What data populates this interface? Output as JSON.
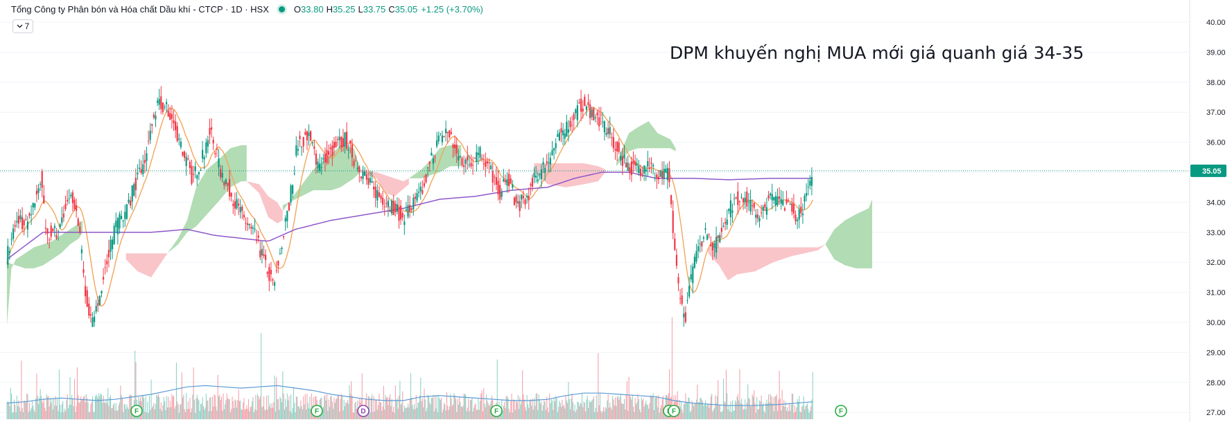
{
  "header": {
    "symbol_title": "Tổng Công ty Phân bón và Hóa chất Dầu khí - CTCP · 1D · HSX",
    "open_key": "O",
    "open": "33.80",
    "high_key": "H",
    "high": "35.25",
    "low_key": "L",
    "low": "33.75",
    "close_key": "C",
    "close": "35.05",
    "change": "+1.25 (+3.70%)",
    "collapse_label": "7",
    "status_color": "#089981"
  },
  "annotation": "DPM khuyến nghị MUA mới giá quanh giá 34-35",
  "events": [
    {
      "label": "F",
      "color": "#22ab3c"
    },
    {
      "label": "F",
      "color": "#22ab3c"
    },
    {
      "label": "D",
      "color": "#8e44ad"
    },
    {
      "label": "F",
      "color": "#22ab3c"
    },
    {
      "label": "F",
      "color": "#22ab3c"
    },
    {
      "label": "F",
      "color": "#22ab3c"
    },
    {
      "label": "F",
      "color": "#22ab3c"
    }
  ],
  "chart_data": {
    "type": "candlestick",
    "y_ticks": [
      "40.00",
      "39.00",
      "38.00",
      "37.00",
      "36.00",
      "35.00",
      "34.00",
      "33.00",
      "32.00",
      "31.00",
      "30.00",
      "29.00",
      "28.00",
      "27.00"
    ],
    "ylim": [
      26.9,
      40.4
    ],
    "last_price_label": "35.05",
    "last_price": 35.05,
    "colors": {
      "up": "#089981",
      "down": "#f23645",
      "up_vol": "#8fd3c7",
      "down_vol": "#f5a3ab",
      "ma_short": "#f2a65a",
      "ma_long": "#8e57c9",
      "vol_ma": "#5b9bd5",
      "cloud_bull": "#a5d6a7",
      "cloud_bear": "#f8bbc0",
      "last_price_tag": "#089981"
    },
    "close_anchors": [
      [
        0,
        32.2
      ],
      [
        8,
        33.1
      ],
      [
        14,
        33.5
      ],
      [
        20,
        33.2
      ],
      [
        28,
        33.6
      ],
      [
        34,
        34.5
      ],
      [
        38,
        34.8
      ],
      [
        42,
        33.4
      ],
      [
        46,
        32.8
      ],
      [
        50,
        33.2
      ],
      [
        54,
        32.9
      ],
      [
        60,
        33.4
      ],
      [
        70,
        34.2
      ],
      [
        77,
        33.8
      ],
      [
        84,
        32.0
      ],
      [
        88,
        30.8
      ],
      [
        96,
        29.8
      ],
      [
        104,
        31.2
      ],
      [
        112,
        32.2
      ],
      [
        120,
        33.1
      ],
      [
        132,
        33.7
      ],
      [
        142,
        34.6
      ],
      [
        152,
        35.2
      ],
      [
        162,
        36.8
      ],
      [
        170,
        37.3
      ],
      [
        180,
        37.0
      ],
      [
        188,
        36.4
      ],
      [
        196,
        35.6
      ],
      [
        206,
        34.8
      ],
      [
        216,
        35.4
      ],
      [
        226,
        36.4
      ],
      [
        236,
        35.1
      ],
      [
        246,
        34.5
      ],
      [
        256,
        33.8
      ],
      [
        266,
        33.3
      ],
      [
        276,
        32.8
      ],
      [
        286,
        32.0
      ],
      [
        296,
        31.2
      ],
      [
        304,
        32.5
      ],
      [
        314,
        34.1
      ],
      [
        322,
        35.9
      ],
      [
        334,
        36.3
      ],
      [
        346,
        35.2
      ],
      [
        356,
        35.6
      ],
      [
        366,
        35.9
      ],
      [
        376,
        36.1
      ],
      [
        386,
        35.4
      ],
      [
        396,
        34.9
      ],
      [
        406,
        34.4
      ],
      [
        418,
        34.1
      ],
      [
        430,
        33.8
      ],
      [
        440,
        33.5
      ],
      [
        450,
        33.9
      ],
      [
        460,
        34.3
      ],
      [
        470,
        35.4
      ],
      [
        480,
        36.1
      ],
      [
        490,
        36.4
      ],
      [
        500,
        35.5
      ],
      [
        512,
        35.3
      ],
      [
        524,
        35.7
      ],
      [
        536,
        35.1
      ],
      [
        546,
        34.3
      ],
      [
        556,
        34.8
      ],
      [
        566,
        33.9
      ],
      [
        576,
        34.1
      ],
      [
        584,
        34.7
      ],
      [
        594,
        35.1
      ],
      [
        604,
        35.6
      ],
      [
        614,
        36.2
      ],
      [
        626,
        36.7
      ],
      [
        638,
        37.3
      ],
      [
        650,
        37.0
      ],
      [
        660,
        36.6
      ],
      [
        670,
        36.2
      ],
      [
        680,
        35.6
      ],
      [
        690,
        35.2
      ],
      [
        700,
        35.1
      ],
      [
        712,
        35.3
      ],
      [
        722,
        34.8
      ],
      [
        734,
        34.9
      ],
      [
        744,
        31.4
      ],
      [
        752,
        30.1
      ],
      [
        758,
        31.2
      ],
      [
        766,
        32.6
      ],
      [
        776,
        33.0
      ],
      [
        786,
        32.5
      ],
      [
        796,
        33.4
      ],
      [
        806,
        34.0
      ],
      [
        816,
        34.3
      ],
      [
        826,
        33.8
      ],
      [
        836,
        33.5
      ],
      [
        846,
        34.1
      ],
      [
        856,
        34.2
      ],
      [
        866,
        33.9
      ],
      [
        876,
        33.6
      ],
      [
        886,
        34.0
      ],
      [
        894,
        35.05
      ]
    ],
    "ma_long": [
      [
        0,
        32.1
      ],
      [
        40,
        33.0
      ],
      [
        100,
        33.0
      ],
      [
        160,
        33.0
      ],
      [
        200,
        33.1
      ],
      [
        230,
        32.9
      ],
      [
        260,
        32.8
      ],
      [
        290,
        32.7
      ],
      [
        320,
        33.1
      ],
      [
        360,
        33.4
      ],
      [
        400,
        33.6
      ],
      [
        440,
        33.8
      ],
      [
        480,
        34.1
      ],
      [
        520,
        34.2
      ],
      [
        560,
        34.4
      ],
      [
        600,
        34.5
      ],
      [
        630,
        34.8
      ],
      [
        660,
        35.0
      ],
      [
        690,
        35.0
      ],
      [
        720,
        34.8
      ],
      [
        760,
        34.8
      ],
      [
        800,
        34.75
      ],
      [
        850,
        34.8
      ],
      [
        894,
        34.8
      ]
    ],
    "ma_short_window": 20,
    "cloud_segments": [
      {
        "kind": "bull",
        "pts": [
          [
            0,
            29.9
          ],
          [
            5,
            31.8
          ],
          [
            10,
            32.1
          ],
          [
            20,
            32.3
          ],
          [
            30,
            32.5
          ],
          [
            40,
            32.6
          ],
          [
            50,
            32.7
          ],
          [
            60,
            32.9
          ],
          [
            70,
            33.1
          ],
          [
            80,
            33.3
          ],
          [
            84,
            33.4
          ]
        ],
        "pts2": [
          [
            0,
            32.0
          ],
          [
            10,
            31.9
          ],
          [
            20,
            31.8
          ],
          [
            30,
            31.8
          ],
          [
            40,
            31.9
          ],
          [
            50,
            32.1
          ],
          [
            60,
            32.3
          ],
          [
            70,
            32.6
          ],
          [
            80,
            32.8
          ],
          [
            84,
            33.0
          ]
        ]
      },
      {
        "kind": "bear",
        "pts": [
          [
            132,
            32.3
          ],
          [
            150,
            32.3
          ],
          [
            170,
            32.3
          ],
          [
            178,
            32.3
          ]
        ],
        "pts2": [
          [
            132,
            32.1
          ],
          [
            145,
            31.7
          ],
          [
            160,
            31.5
          ],
          [
            178,
            32.3
          ]
        ]
      },
      {
        "kind": "bull",
        "pts": [
          [
            178,
            32.3
          ],
          [
            190,
            32.8
          ],
          [
            200,
            33.4
          ],
          [
            210,
            34.5
          ],
          [
            222,
            35.1
          ],
          [
            234,
            35.4
          ],
          [
            248,
            35.8
          ],
          [
            260,
            35.9
          ],
          [
            266,
            35.9
          ]
        ],
        "pts2": [
          [
            178,
            32.3
          ],
          [
            190,
            32.6
          ],
          [
            200,
            33.0
          ],
          [
            210,
            33.2
          ],
          [
            222,
            33.6
          ],
          [
            234,
            34.0
          ],
          [
            248,
            34.5
          ],
          [
            260,
            34.7
          ],
          [
            266,
            34.7
          ]
        ]
      },
      {
        "kind": "bear",
        "pts": [
          [
            266,
            34.7
          ],
          [
            280,
            34.6
          ],
          [
            290,
            34.2
          ],
          [
            300,
            34.0
          ],
          [
            306,
            33.7
          ]
        ],
        "pts2": [
          [
            266,
            34.7
          ],
          [
            280,
            34.3
          ],
          [
            290,
            33.5
          ],
          [
            300,
            33.3
          ],
          [
            306,
            33.4
          ]
        ]
      },
      {
        "kind": "bull",
        "pts": [
          [
            306,
            33.7
          ],
          [
            320,
            34.3
          ],
          [
            340,
            35.1
          ],
          [
            360,
            35.6
          ],
          [
            370,
            35.9
          ],
          [
            385,
            35.8
          ],
          [
            392,
            35.1
          ]
        ],
        "pts2": [
          [
            306,
            33.9
          ],
          [
            320,
            34.1
          ],
          [
            340,
            34.4
          ],
          [
            360,
            34.4
          ],
          [
            370,
            34.5
          ],
          [
            385,
            34.8
          ],
          [
            392,
            35.0
          ]
        ]
      },
      {
        "kind": "bear",
        "pts": [
          [
            392,
            35.1
          ],
          [
            410,
            35.0
          ],
          [
            430,
            34.8
          ],
          [
            440,
            34.7
          ],
          [
            446,
            34.8
          ]
        ],
        "pts2": [
          [
            392,
            35.0
          ],
          [
            410,
            34.8
          ],
          [
            420,
            34.3
          ],
          [
            430,
            34.2
          ],
          [
            446,
            34.6
          ]
        ]
      },
      {
        "kind": "bull",
        "pts": [
          [
            446,
            34.8
          ],
          [
            460,
            35.1
          ],
          [
            470,
            35.4
          ],
          [
            480,
            35.8
          ],
          [
            492,
            35.9
          ],
          [
            504,
            35.9
          ]
        ],
        "pts2": [
          [
            446,
            34.8
          ],
          [
            460,
            34.8
          ],
          [
            470,
            34.9
          ],
          [
            480,
            35.0
          ],
          [
            492,
            35.2
          ],
          [
            504,
            35.2
          ]
        ]
      },
      {
        "kind": "bear",
        "pts": [
          [
            585,
            35.3
          ],
          [
            600,
            35.3
          ],
          [
            620,
            35.3
          ],
          [
            640,
            35.3
          ],
          [
            656,
            35.2
          ],
          [
            664,
            35.1
          ]
        ],
        "pts2": [
          [
            585,
            35.0
          ],
          [
            600,
            34.6
          ],
          [
            620,
            34.5
          ],
          [
            640,
            34.6
          ],
          [
            656,
            34.7
          ],
          [
            664,
            35.0
          ]
        ]
      },
      {
        "kind": "bull",
        "pts": [
          [
            676,
            35.3
          ],
          [
            690,
            36.3
          ],
          [
            700,
            36.5
          ],
          [
            712,
            36.7
          ],
          [
            722,
            36.3
          ],
          [
            736,
            36.1
          ],
          [
            742,
            35.8
          ]
        ],
        "pts2": [
          [
            676,
            35.2
          ],
          [
            690,
            35.7
          ],
          [
            700,
            35.8
          ],
          [
            712,
            35.8
          ],
          [
            722,
            35.8
          ],
          [
            736,
            35.8
          ],
          [
            742,
            35.7
          ]
        ]
      },
      {
        "kind": "bear",
        "pts": [
          [
            778,
            32.5
          ],
          [
            800,
            32.5
          ],
          [
            830,
            32.5
          ],
          [
            870,
            32.5
          ],
          [
            900,
            32.5
          ],
          [
            908,
            32.6
          ]
        ],
        "pts2": [
          [
            778,
            32.3
          ],
          [
            790,
            31.9
          ],
          [
            800,
            31.4
          ],
          [
            810,
            31.6
          ],
          [
            830,
            31.7
          ],
          [
            850,
            32.0
          ],
          [
            870,
            32.2
          ],
          [
            900,
            32.4
          ],
          [
            908,
            32.6
          ]
        ]
      },
      {
        "kind": "bull",
        "pts": [
          [
            908,
            32.6
          ],
          [
            918,
            33.1
          ],
          [
            930,
            33.4
          ],
          [
            942,
            33.6
          ],
          [
            956,
            33.8
          ],
          [
            960,
            34.1
          ]
        ],
        "pts2": [
          [
            908,
            32.6
          ],
          [
            918,
            32.1
          ],
          [
            930,
            31.9
          ],
          [
            942,
            31.8
          ],
          [
            956,
            31.8
          ],
          [
            960,
            31.8
          ]
        ]
      }
    ],
    "vol_ma": [
      [
        0,
        1.3
      ],
      [
        20,
        1.4
      ],
      [
        40,
        1.6
      ],
      [
        60,
        1.7
      ],
      [
        80,
        1.6
      ],
      [
        100,
        1.5
      ],
      [
        120,
        1.6
      ],
      [
        140,
        1.8
      ],
      [
        160,
        2.0
      ],
      [
        180,
        2.3
      ],
      [
        200,
        2.6
      ],
      [
        220,
        2.7
      ],
      [
        240,
        2.6
      ],
      [
        260,
        2.5
      ],
      [
        280,
        2.6
      ],
      [
        300,
        2.7
      ],
      [
        320,
        2.5
      ],
      [
        340,
        2.3
      ],
      [
        360,
        2.0
      ],
      [
        380,
        1.8
      ],
      [
        400,
        1.6
      ],
      [
        420,
        1.5
      ],
      [
        440,
        1.5
      ],
      [
        460,
        1.8
      ],
      [
        480,
        1.9
      ],
      [
        500,
        1.8
      ],
      [
        520,
        1.7
      ],
      [
        540,
        1.6
      ],
      [
        560,
        1.5
      ],
      [
        580,
        1.5
      ],
      [
        600,
        1.6
      ],
      [
        620,
        1.9
      ],
      [
        640,
        2.1
      ],
      [
        660,
        2.1
      ],
      [
        680,
        2.0
      ],
      [
        700,
        1.9
      ],
      [
        720,
        1.8
      ],
      [
        740,
        1.5
      ],
      [
        760,
        1.3
      ],
      [
        780,
        1.2
      ],
      [
        800,
        1.1
      ],
      [
        830,
        1.1
      ],
      [
        860,
        1.2
      ],
      [
        894,
        1.4
      ]
    ]
  }
}
